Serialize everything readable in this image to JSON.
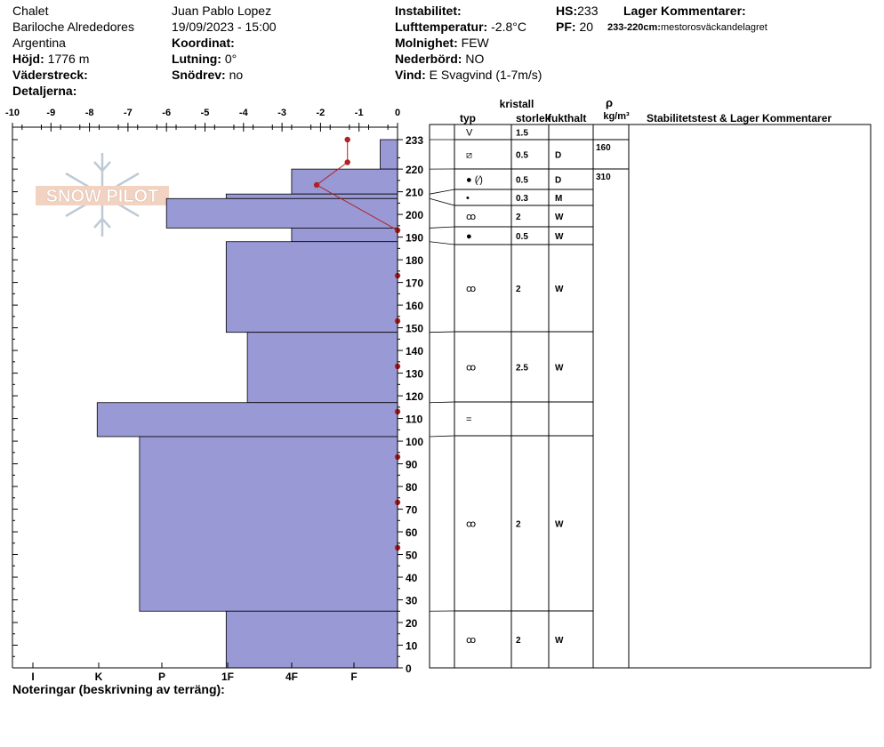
{
  "header": {
    "location_name": "Chalet",
    "location_area": "Bariloche Alrededores",
    "country": "Argentina",
    "elevation_label": "Höjd:",
    "elevation_value": "1776 m",
    "aspect_label": "Väderstreck:",
    "details_label": "Detaljerna:",
    "observer": "Juan Pablo  Lopez",
    "datetime": "19/09/2023 - 15:00",
    "coord_label": "Koordinat:",
    "slope_label": "Lutning:",
    "slope_value": "0°",
    "drift_label": "Snödrev:",
    "drift_value": "no",
    "instability_label": "Instabilitet:",
    "air_temp_label": "Lufttemperatur:",
    "air_temp_value": "-2.8°C",
    "sky_label": "Molnighet:",
    "sky_value": "FEW",
    "precip_label": "Nederbörd:",
    "precip_value": "NO",
    "wind_label": "Vind:",
    "wind_value": "E Svagvind (1-7m/s)",
    "hs_label": "HS:",
    "hs_value": "233",
    "pf_label": "PF:",
    "pf_value": "20",
    "layer_comments_label": "Lager Kommentarer:",
    "layer_comment_range": "233-220cm:",
    "layer_comment_text": "mestorosväckandelagret"
  },
  "footer": {
    "notes_label": "Noteringar (beskrivning av terräng):"
  },
  "logo_text": "SNOW PILOT",
  "colors": {
    "layer_fill": "#9999d6",
    "temp_line": "#b22222",
    "axis": "#000000"
  },
  "chart_data": {
    "type": "snow_profile",
    "temp_axis": {
      "ticks": [
        "-10",
        "-9",
        "-8",
        "-7",
        "-6",
        "-5",
        "-4",
        "-3",
        "-2",
        "-1",
        "0"
      ],
      "range": [
        -10,
        0
      ]
    },
    "hardness_axis": {
      "ticks": [
        "I",
        "K",
        "P",
        "1F",
        "4F",
        "F"
      ]
    },
    "height_axis": {
      "range": [
        0,
        233
      ],
      "ticks": [
        "0",
        "10",
        "20",
        "30",
        "40",
        "50",
        "60",
        "70",
        "80",
        "90",
        "100",
        "110",
        "120",
        "130",
        "140",
        "150",
        "160",
        "170",
        "180",
        "190",
        "200",
        "210",
        "220",
        "233"
      ]
    },
    "layers": [
      {
        "top": 233,
        "bottom": 220,
        "hardness_temp_units": -0.45
      },
      {
        "top": 220,
        "bottom": 209,
        "hardness_temp_units": -2.75
      },
      {
        "top": 209,
        "bottom": 207,
        "hardness_temp_units": -4.45
      },
      {
        "top": 207,
        "bottom": 194,
        "hardness_temp_units": -6.0
      },
      {
        "top": 194,
        "bottom": 188,
        "hardness_temp_units": -2.75
      },
      {
        "top": 188,
        "bottom": 148,
        "hardness_temp_units": -4.45
      },
      {
        "top": 148,
        "bottom": 117,
        "hardness_temp_units": -3.9
      },
      {
        "top": 117,
        "bottom": 102,
        "hardness_temp_units": -7.8
      },
      {
        "top": 102,
        "bottom": 25,
        "hardness_temp_units": -6.7
      },
      {
        "top": 25,
        "bottom": 0,
        "hardness_temp_units": -4.45
      }
    ],
    "temperature_profile": [
      {
        "height": 233,
        "temp": -1.3
      },
      {
        "height": 223,
        "temp": -1.3
      },
      {
        "height": 213,
        "temp": -2.1
      },
      {
        "height": 193,
        "temp": 0
      },
      {
        "height": 173,
        "temp": 0
      },
      {
        "height": 153,
        "temp": 0
      },
      {
        "height": 133,
        "temp": 0
      },
      {
        "height": 113,
        "temp": 0
      },
      {
        "height": 93,
        "temp": 0
      },
      {
        "height": 73,
        "temp": 0
      },
      {
        "height": 53,
        "temp": 0
      }
    ],
    "table": {
      "header_crystal": "kristall",
      "header_type": "typ",
      "header_size": "storlek",
      "header_moisture": "fukthalt",
      "header_rho": "ρ",
      "header_rho_unit": "kg/m³",
      "header_comments": "Stabilitetstest & Lager Kommentarer",
      "density_values": [
        "160",
        "310"
      ],
      "rows": [
        {
          "grain": "V",
          "size": "1.5",
          "moisture": ""
        },
        {
          "grain": "⧄",
          "size": "0.5",
          "moisture": "D"
        },
        {
          "grain": "● (⁄)",
          "size": "0.5",
          "moisture": "D"
        },
        {
          "grain": "•",
          "size": "0.3",
          "moisture": "M"
        },
        {
          "grain": "ꝏ",
          "size": "2",
          "moisture": "W"
        },
        {
          "grain": "●",
          "size": "0.5",
          "moisture": "W"
        },
        {
          "grain": "ꝏ",
          "size": "2",
          "moisture": "W"
        },
        {
          "grain": "ꝏ",
          "size": "2.5",
          "moisture": "W"
        },
        {
          "grain": "=",
          "size": "",
          "moisture": ""
        },
        {
          "grain": "ꝏ",
          "size": "2",
          "moisture": "W"
        },
        {
          "grain": "ꝏ",
          "size": "2",
          "moisture": "W"
        }
      ]
    }
  }
}
